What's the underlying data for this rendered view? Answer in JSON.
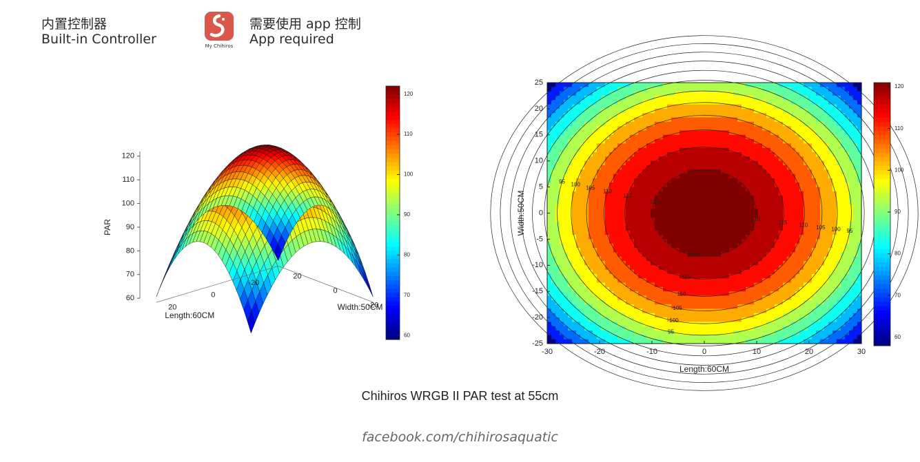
{
  "header": {
    "left_cn": "内置控制器",
    "left_en": "Built-in Controller",
    "app_icon_label": "My Chihiros",
    "right_cn": "需要使用 app 控制",
    "right_en": "App required"
  },
  "caption": "Chihiros WRGB II PAR test at 55cm",
  "footer": "facebook.com/chihirosaquatic",
  "colors": {
    "accent_icon": "#d9584a"
  },
  "chart_data": [
    {
      "type": "surface",
      "zlabel": "PAR",
      "xlabel": "Length:60CM",
      "ylabel": "Width:50CM",
      "zticks": [
        60,
        70,
        80,
        90,
        100,
        110,
        120
      ],
      "xticks": [
        20,
        0,
        -20
      ],
      "yticks": [
        -20,
        0,
        20
      ],
      "zlim": [
        60,
        124
      ],
      "xrange": [
        -30,
        30
      ],
      "yrange": [
        -25,
        25
      ],
      "peak": 124,
      "corner_value": 60,
      "colormap": "jet",
      "colorbar": {
        "ticks": [
          60,
          70,
          80,
          90,
          100,
          110,
          120
        ],
        "range": [
          59,
          122
        ]
      }
    },
    {
      "type": "contour",
      "xlabel": "Length:60CM",
      "ylabel": "Width:50CM",
      "xticks": [
        -30,
        -20,
        -10,
        0,
        10,
        20,
        30
      ],
      "yticks": [
        -25,
        -20,
        -15,
        -10,
        -5,
        0,
        5,
        10,
        15,
        20,
        25
      ],
      "xlim": [
        -30,
        30
      ],
      "ylim": [
        -25,
        25
      ],
      "levels": [
        65,
        70,
        75,
        80,
        85,
        90,
        95,
        100,
        105,
        110,
        115,
        120
      ],
      "peak": 124,
      "corner_value": 60,
      "colormap": "jet",
      "colorbar": {
        "ticks": [
          60,
          70,
          80,
          90,
          100,
          110,
          120
        ],
        "range": [
          58,
          121
        ]
      }
    }
  ]
}
